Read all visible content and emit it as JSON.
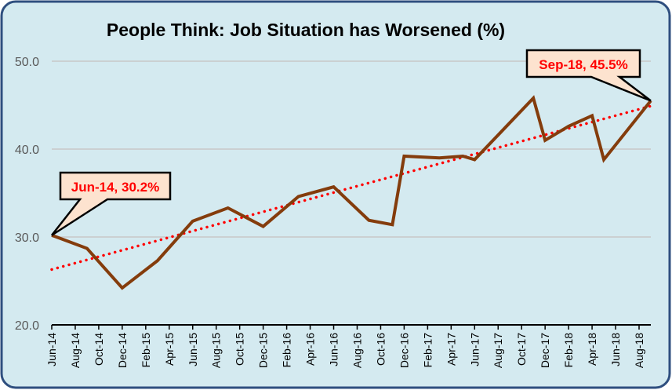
{
  "chart_data": {
    "type": "line",
    "title": "People Think: Job Situation has Worsened (%)",
    "xlabel": "",
    "ylabel": "",
    "ylim": [
      20,
      50
    ],
    "yticks": [
      "20.0",
      "30.0",
      "40.0",
      "50.0"
    ],
    "grid": true,
    "x_tick_labels": [
      "Jun-14",
      "Aug-14",
      "Oct-14",
      "Dec-14",
      "Feb-15",
      "Apr-15",
      "Jun-15",
      "Aug-15",
      "Oct-15",
      "Dec-15",
      "Feb-16",
      "Apr-16",
      "Jun-16",
      "Aug-16",
      "Oct-16",
      "Dec-16",
      "Feb-17",
      "Apr-17",
      "Jun-17",
      "Aug-17",
      "Oct-17",
      "Dec-17",
      "Feb-18",
      "Apr-18",
      "Jun-18",
      "Aug-18"
    ],
    "series": [
      {
        "x": [
          "Jun-14",
          "Sep-14",
          "Dec-14",
          "Mar-15",
          "Jun-15",
          "Sep-15",
          "Dec-15",
          "Mar-16",
          "Jun-16",
          "Sep-16",
          "Nov-16",
          "Dec-16",
          "Mar-17",
          "May-17",
          "Jun-17",
          "Nov-17",
          "Dec-17",
          "Feb-18",
          "Apr-18",
          "May-18",
          "Sep-18"
        ],
        "values": [
          30.2,
          28.7,
          24.2,
          27.3,
          31.8,
          33.3,
          31.2,
          34.6,
          35.7,
          31.9,
          31.4,
          39.2,
          39.0,
          39.2,
          38.8,
          45.8,
          41.0,
          42.6,
          43.8,
          38.8,
          45.5
        ],
        "color": "#843c0c"
      }
    ],
    "trendline": {
      "type": "linear",
      "style": "dotted",
      "color": "#ff0000",
      "start": [
        "Jun-14",
        26.3
      ],
      "end": [
        "Sep-18",
        44.9
      ]
    },
    "annotations": [
      {
        "text": "Jun-14, 30.2%",
        "x": "Jun-14",
        "y": 30.2
      },
      {
        "text": "Sep-18, 45.5%",
        "x": "Sep-18",
        "y": 45.5
      }
    ],
    "colors": {
      "background": "#d4eaf0",
      "border": "#2f4f7f",
      "callout_fill": "#fde3cf",
      "gridline": "#c8c8c8"
    }
  }
}
